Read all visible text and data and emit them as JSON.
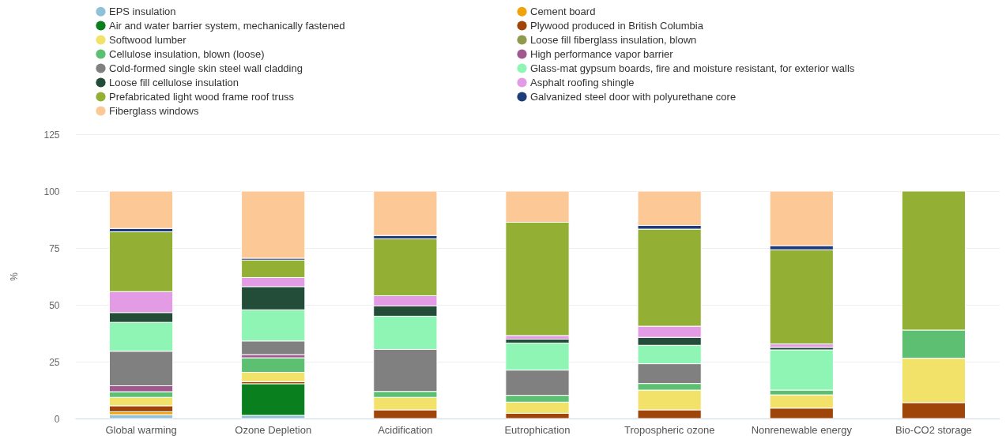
{
  "chart_data": {
    "type": "bar",
    "stacked": true,
    "ylabel": "%",
    "categories": [
      "Global warming",
      "Ozone Depletion",
      "Acidification",
      "Eutrophication",
      "Tropospheric ozone",
      "Nonrenewable energy",
      "Bio-CO2 storage"
    ],
    "ylim": [
      0,
      125
    ],
    "yticks": [
      0,
      25,
      50,
      75,
      100,
      125
    ],
    "grid": "y",
    "legend": "top",
    "series": [
      {
        "name": "EPS insulation",
        "color": "#8fc1d9",
        "values": [
          1.7,
          1.4,
          null,
          null,
          null,
          null,
          null
        ]
      },
      {
        "name": "Cement board",
        "color": "#f0a30a",
        "values": [
          1.3,
          null,
          null,
          null,
          null,
          null,
          null
        ]
      },
      {
        "name": "Air and water barrier system, mechanically fastened",
        "color": "#0a7f1e",
        "values": [
          null,
          13.9,
          null,
          null,
          null,
          null,
          null
        ]
      },
      {
        "name": "Plywood produced in British Columbia",
        "color": "#a0450a",
        "values": [
          2.6,
          0.9,
          3.8,
          2.3,
          3.8,
          4.6,
          7.0
        ]
      },
      {
        "name": "Softwood lumber",
        "color": "#f2e26a",
        "values": [
          3.7,
          4.1,
          5.5,
          4.9,
          8.7,
          5.8,
          19.5
        ]
      },
      {
        "name": "Loose fill fiberglass insulation, blown",
        "color": "#8f9a4f",
        "values": [
          null,
          null,
          null,
          null,
          null,
          null,
          null
        ]
      },
      {
        "name": "Cellulose insulation, blown (loose)",
        "color": "#5cbf72",
        "values": [
          2.5,
          6.4,
          2.6,
          3.0,
          2.9,
          2.1,
          12.4
        ]
      },
      {
        "name": "High performance vapor barrier",
        "color": "#a0588f",
        "values": [
          2.6,
          1.4,
          null,
          null,
          null,
          null,
          null
        ]
      },
      {
        "name": "Cold-formed single skin steel wall cladding",
        "color": "#808080",
        "values": [
          15.2,
          6.0,
          18.5,
          11.1,
          8.7,
          null,
          null
        ]
      },
      {
        "name": "Glass-mat gypsum boards, fire and moisture resistant, for exterior walls",
        "color": "#8ef5b5",
        "values": [
          12.7,
          13.7,
          14.6,
          11.9,
          8.1,
          17.7,
          null
        ]
      },
      {
        "name": "Loose fill cellulose insulation",
        "color": "#234d38",
        "values": [
          4.3,
          10.2,
          4.5,
          1.7,
          3.5,
          1.1,
          null
        ]
      },
      {
        "name": "Asphalt roofing shingle",
        "color": "#e39be6",
        "values": [
          9.2,
          4.0,
          4.5,
          1.6,
          4.9,
          1.5,
          null
        ]
      },
      {
        "name": "Prefabricated light wood frame roof truss",
        "color": "#93b035",
        "values": [
          26.3,
          7.7,
          25.0,
          49.8,
          42.7,
          41.4,
          61.1
        ]
      },
      {
        "name": "Galvanized steel door with polyurethane core",
        "color": "#1d3c7a",
        "values": [
          1.5,
          0.8,
          1.5,
          null,
          1.6,
          1.8,
          null
        ]
      },
      {
        "name": "Fiberglass windows",
        "color": "#fcc896",
        "values": [
          16.4,
          29.5,
          19.5,
          13.7,
          15.1,
          24.0,
          null
        ]
      }
    ]
  }
}
